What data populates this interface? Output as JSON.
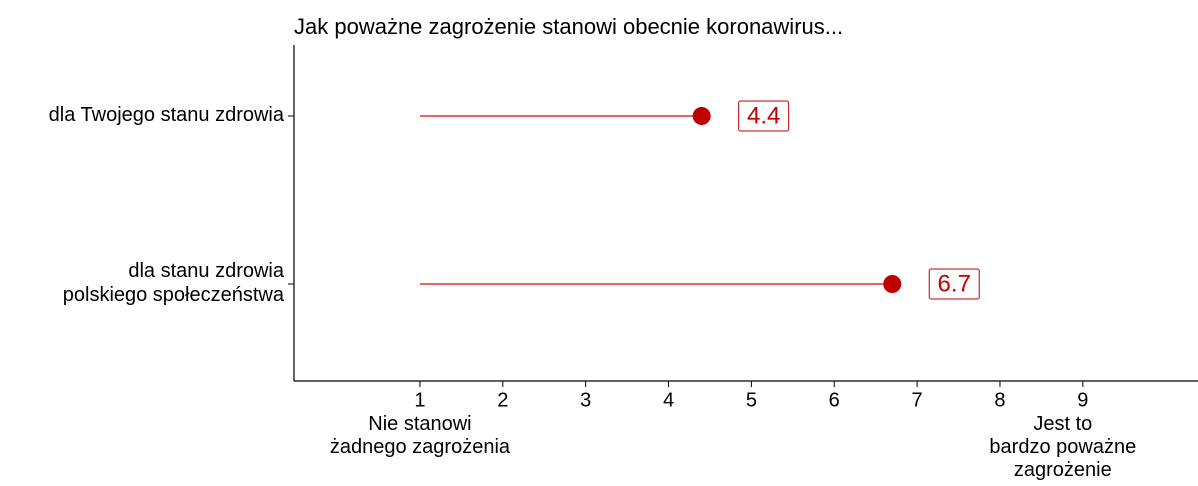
{
  "chart_data": {
    "type": "lollipop",
    "title": "Jak poważne zagrożenie stanowi obecnie koronawirus...",
    "categories": [
      "dla Twojego stanu zdrowia",
      "dla stanu zdrowia\npolskiego społeczeństwa"
    ],
    "values": [
      4.4,
      6.7
    ],
    "color": "#c00000",
    "line_color": "#e03030",
    "xlim": [
      -0.52,
      10.39
    ],
    "xticks": [
      1,
      2,
      3,
      4,
      5,
      6,
      7,
      8,
      9
    ],
    "grid": false,
    "annotations": [
      "Nie stanowi\nżadnego zagrożenia",
      "Jest to\nbardzo poważne\nzagrożenie"
    ]
  }
}
